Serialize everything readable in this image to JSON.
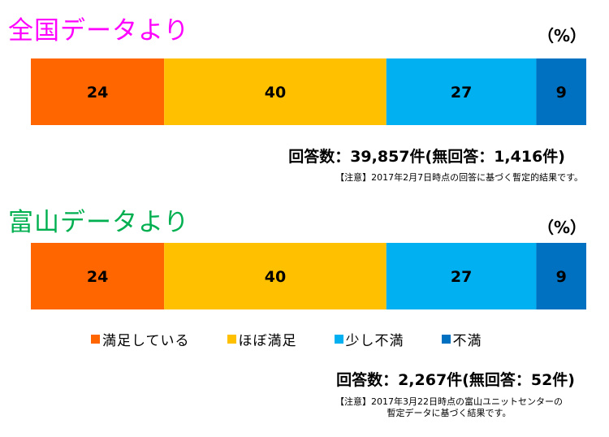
{
  "chart_data": [
    {
      "type": "bar",
      "orientation": "horizontal-stacked-100",
      "title": "全国データより",
      "unit": "（%）",
      "categories": [
        "満足している",
        "ほぼ満足",
        "少し不満",
        "不満"
      ],
      "values": [
        24,
        40,
        27,
        9
      ],
      "responses": "回答数：39,857件(無回答：1,416件)",
      "note": "【注意】2017年2月7日時点の回答に基づく暫定的結果です。"
    },
    {
      "type": "bar",
      "orientation": "horizontal-stacked-100",
      "title": "富山データより",
      "unit": "（%）",
      "categories": [
        "満足している",
        "ほぼ満足",
        "少し不満",
        "不満"
      ],
      "values": [
        24,
        40,
        27,
        9
      ],
      "responses": "回答数：2,267件(無回答：52件)",
      "note_lines": [
        "【注意】2017年3月22日時点の富山ユニットセンターの",
        "暫定データに基づく結果です。"
      ]
    }
  ],
  "legend": [
    {
      "label": "満足している",
      "color": "#ff6600"
    },
    {
      "label": "ほぼ満足",
      "color": "#ffc000"
    },
    {
      "label": "少し不満",
      "color": "#00b0f0"
    },
    {
      "label": "不満",
      "color": "#0070c0"
    }
  ],
  "colors": {
    "title_national": "#ff00ff",
    "title_toyama": "#00b050",
    "segments": [
      "#ff6600",
      "#ffc000",
      "#00b0f0",
      "#0070c0"
    ]
  }
}
